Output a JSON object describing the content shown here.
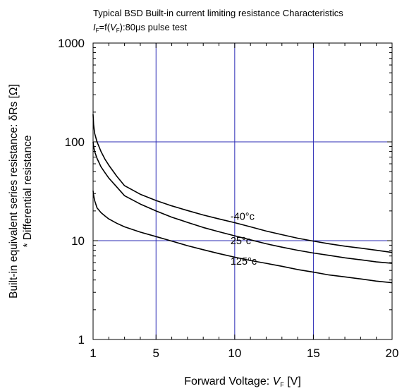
{
  "chart_data": {
    "type": "line",
    "title": "Typical BSD Built-in current limiting resistance Characteristics",
    "subtitle": {
      "i": "I",
      "i_sub": "F",
      "eq": "=f(",
      "v": "V",
      "v_sub": "F",
      "rest": "):80μs pulse test"
    },
    "xlabel": {
      "text": "Forward Voltage: ",
      "var": "V",
      "sub": "F",
      "unit": " [V]"
    },
    "ylabel": {
      "line1": "Built-in equivalent series resistance: δRs [Ω]",
      "line2": "* Differential resistance"
    },
    "x_ticks": [
      "1",
      "5",
      "10",
      "15",
      "20"
    ],
    "y_ticks": [
      "1",
      "10",
      "100",
      "1000"
    ],
    "xlim": [
      1,
      20
    ],
    "ylim": [
      1,
      1000
    ],
    "yscale": "log",
    "grid_x": [
      5,
      10,
      15
    ],
    "grid_y": [
      10,
      100
    ],
    "grid_color": "#2b2bb5",
    "line_color": "#000000",
    "series": [
      {
        "name": "-40°c",
        "x": [
          1.0,
          1.03,
          1.1,
          1.25,
          1.5,
          1.75,
          2.0,
          2.5,
          3.0,
          4.0,
          5.0,
          6.0,
          7.0,
          8.0,
          9.0,
          10.0,
          11.0,
          12.0,
          13.0,
          14.0,
          15.0,
          16.0,
          17.0,
          18.0,
          19.0,
          20.0
        ],
        "y": [
          190,
          150,
          122,
          100,
          80,
          67,
          58,
          45,
          36,
          29.5,
          25.5,
          22.5,
          20.2,
          18.2,
          16.6,
          15.2,
          13.8,
          12.5,
          11.5,
          10.6,
          9.9,
          9.3,
          8.8,
          8.4,
          8.0,
          7.6
        ]
      },
      {
        "name": "25°c",
        "x": [
          1.0,
          1.03,
          1.1,
          1.25,
          1.5,
          1.75,
          2.0,
          2.5,
          3.0,
          4.0,
          5.0,
          6.0,
          7.0,
          8.0,
          9.0,
          10.0,
          11.0,
          12.0,
          13.0,
          14.0,
          15.0,
          16.0,
          17.0,
          18.0,
          19.0,
          20.0
        ],
        "y": [
          100,
          90,
          80,
          68,
          56,
          49,
          43,
          35,
          28.5,
          23.5,
          20,
          17.3,
          15.3,
          13.6,
          12.3,
          11.2,
          10.2,
          9.3,
          8.6,
          8.0,
          7.5,
          7.1,
          6.7,
          6.4,
          6.1,
          5.9
        ]
      },
      {
        "name": "125°c",
        "x": [
          1.0,
          1.03,
          1.1,
          1.25,
          1.5,
          1.75,
          2.0,
          2.5,
          3.0,
          4.0,
          5.0,
          6.0,
          7.0,
          8.0,
          9.0,
          10.0,
          11.0,
          12.0,
          13.0,
          14.0,
          15.0,
          16.0,
          17.0,
          18.0,
          19.0,
          20.0
        ],
        "y": [
          32,
          29,
          25.5,
          21.5,
          19.2,
          17.8,
          16.6,
          15.0,
          13.8,
          12.2,
          11.0,
          9.9,
          8.9,
          8.1,
          7.4,
          6.8,
          6.3,
          5.9,
          5.5,
          5.1,
          4.8,
          4.5,
          4.3,
          4.1,
          3.9,
          3.75
        ]
      }
    ],
    "annotations": [
      {
        "text": "-40°c",
        "x": 10,
        "y": 16.2
      },
      {
        "text": "25°c",
        "x": 10,
        "y": 9.2
      },
      {
        "text": "125°c",
        "x": 10,
        "y": 5.7
      }
    ]
  }
}
